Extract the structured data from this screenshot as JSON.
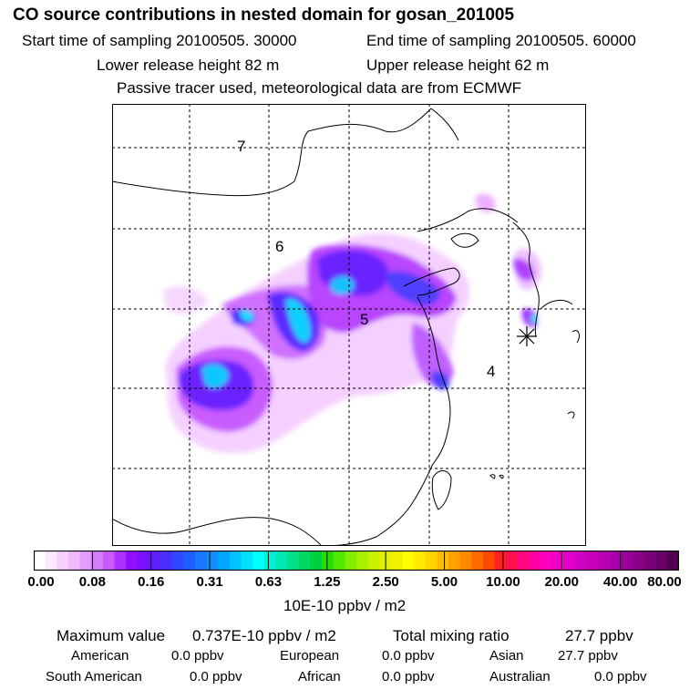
{
  "header": {
    "title": "CO  source contributions in nested domain for gosan_201005",
    "start_time": "Start time of sampling 20100505. 30000",
    "end_time": "End time of sampling 20100505. 60000",
    "lower_height": "Lower release height   82 m",
    "upper_height": "Upper release height   62 m",
    "tracer_note": "Passive tracer used, meteorological data are from ECMWF"
  },
  "map": {
    "region_labels": [
      "7",
      "6",
      "5",
      "4"
    ],
    "receptor": "gosan"
  },
  "colorbar": {
    "ticks": [
      "0.00",
      "0.08",
      "0.16",
      "0.31",
      "0.63",
      "1.25",
      "2.50",
      "5.00",
      "10.00",
      "20.00",
      "40.00",
      "80.00"
    ],
    "colors": [
      "#ffffff",
      "#fbe9ff",
      "#f6d2ff",
      "#f0b8ff",
      "#e59cff",
      "#d87cff",
      "#c65aff",
      "#b030ff",
      "#9010ff",
      "#7a10ff",
      "#6020ff",
      "#4a30ff",
      "#3048ff",
      "#1e60ff",
      "#1878ff",
      "#1090ff",
      "#00a8ff",
      "#00c4ff",
      "#00e0ff",
      "#00ffff",
      "#00f0d8",
      "#00e8b0",
      "#00e088",
      "#00d860",
      "#00d040",
      "#20e000",
      "#50e800",
      "#80f000",
      "#a8f000",
      "#c8f000",
      "#e0f000",
      "#f0f000",
      "#ffff00",
      "#ffea00",
      "#ffd400",
      "#ffbe00",
      "#ffa200",
      "#ff8a00",
      "#ff6a00",
      "#ff4a00",
      "#ff2020",
      "#ff1050",
      "#ff0880",
      "#ff00a0",
      "#ff00c0",
      "#f000c8",
      "#e000c8",
      "#d000c0",
      "#c800b8",
      "#b800b0",
      "#a800a8",
      "#980098",
      "#880088",
      "#780078",
      "#680068",
      "#500050"
    ],
    "units": "10E-10 ppbv / m2"
  },
  "summary": {
    "max_label": "Maximum value",
    "max_value": "0.737E-10 ppbv / m2",
    "total_label": "Total mixing ratio",
    "total_value": "27.7 ppbv",
    "regions": [
      {
        "name": "American",
        "value": "0.0 ppbv"
      },
      {
        "name": "European",
        "value": "0.0 ppbv"
      },
      {
        "name": "Asian",
        "value": "27.7 ppbv"
      },
      {
        "name": "South American",
        "value": "0.0 ppbv"
      },
      {
        "name": "African",
        "value": "0.0 ppbv"
      },
      {
        "name": "Australian",
        "value": "0.0 ppbv"
      }
    ]
  }
}
